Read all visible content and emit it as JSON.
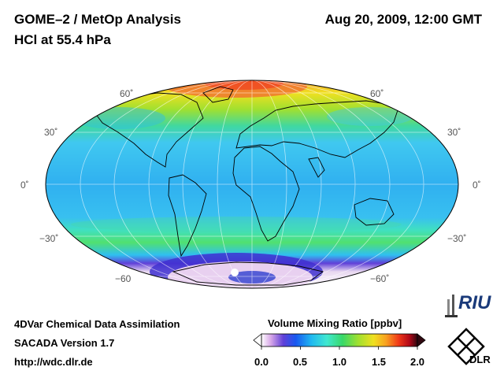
{
  "header": {
    "title": "GOME–2 / MetOp Analysis",
    "subtitle": "HCl at 55.4 hPa",
    "datetime": "Aug 20, 2009, 12:00 GMT"
  },
  "map": {
    "projection": "Mollweide",
    "latitude_labels_left": [
      "60˚",
      "30˚",
      "0˚",
      "−30˚",
      "−60"
    ],
    "latitude_labels_right": [
      "60˚",
      "30˚",
      "0˚",
      "−30˚",
      "−60˚"
    ]
  },
  "footer": {
    "line1": "4DVar Chemical Data Assimilation",
    "line2": "SACADA Version 1.7",
    "line3": "http://wdc.dlr.de"
  },
  "colorbar": {
    "title": "Volume Mixing Ratio [ppbv]",
    "ticks": [
      "0.0",
      "0.5",
      "1.0",
      "1.5",
      "2.0"
    ],
    "range": [
      0.0,
      2.0
    ],
    "colors": [
      "#ffffff",
      "#d8a8e8",
      "#6040d8",
      "#1858f0",
      "#20b8f0",
      "#40e8d0",
      "#38d868",
      "#a0e030",
      "#f0e020",
      "#f8a020",
      "#f03818",
      "#b00818",
      "#300810"
    ]
  },
  "logos": {
    "riu": "RIU",
    "dlr": "DLR"
  }
}
